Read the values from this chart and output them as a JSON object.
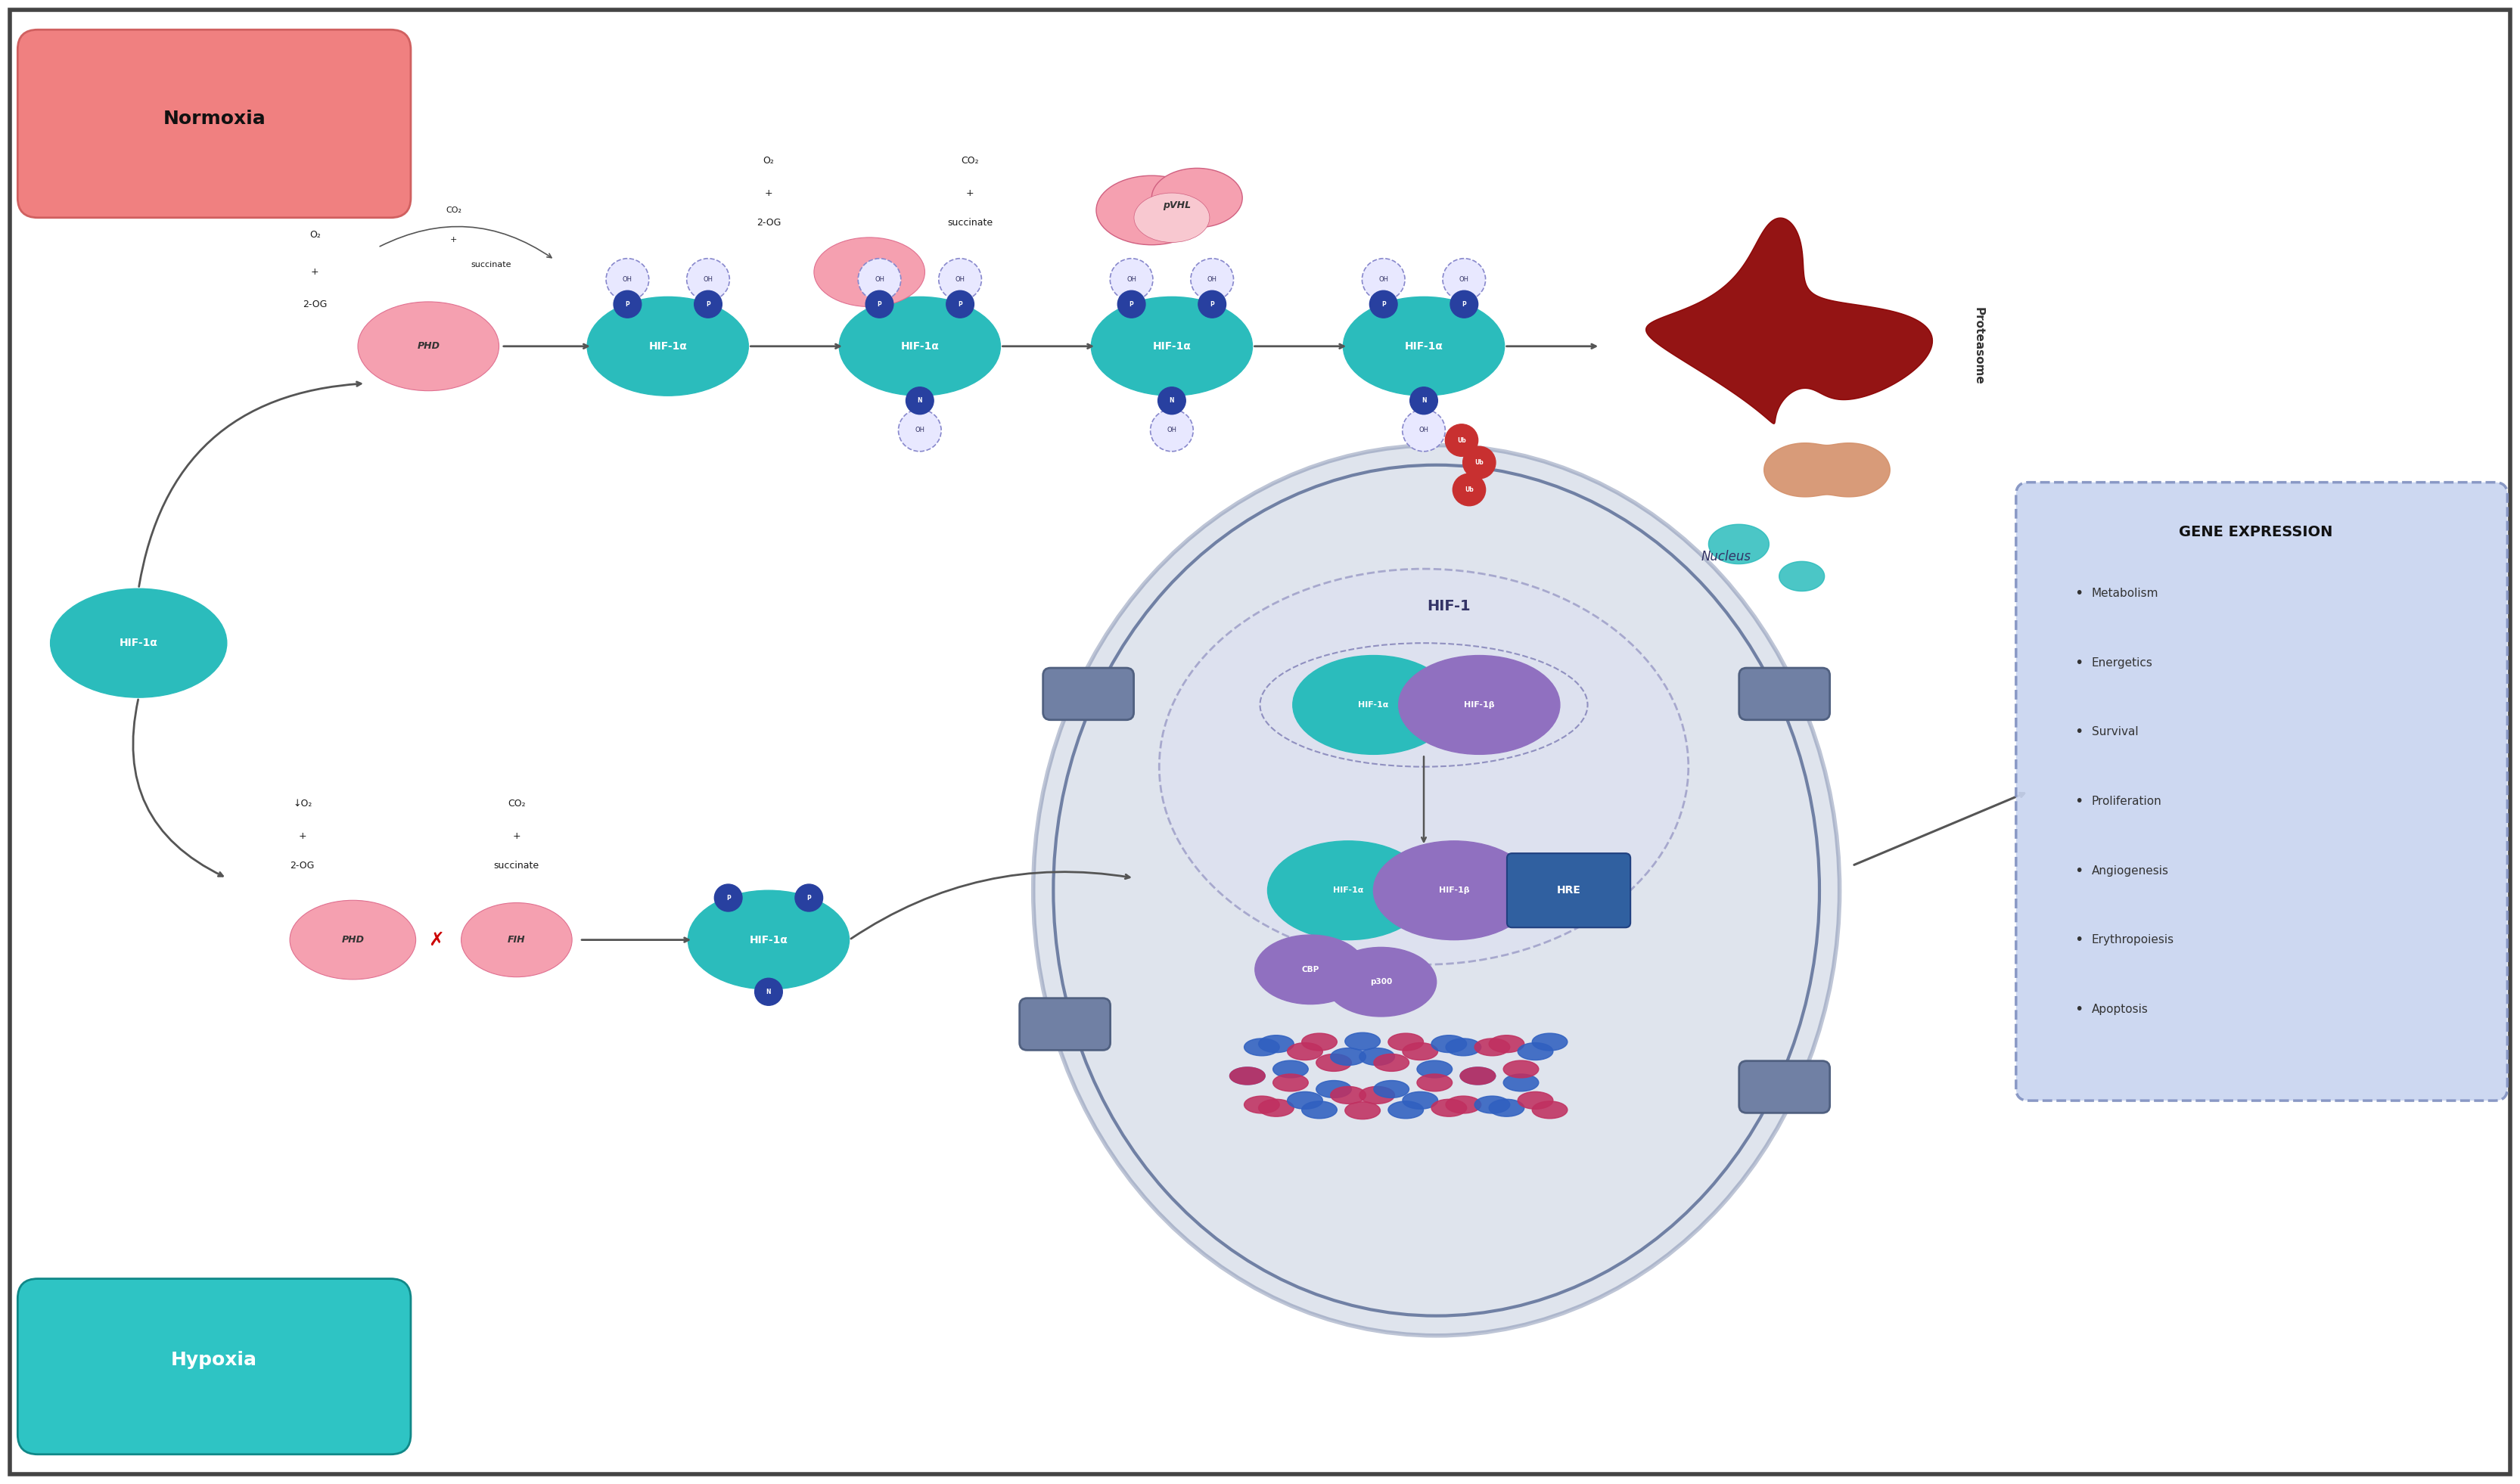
{
  "bg": "#ffffff",
  "border_color": "#444444",
  "normoxia_label": "Normoxia",
  "normoxia_color": "#f08080",
  "normoxia_border": "#d06060",
  "hypoxia_label": "Hypoxia",
  "hypoxia_color": "#2ec4c4",
  "hypoxia_border": "#108888",
  "hif_color": "#2bbcbc",
  "hif_text": "HIF-1α",
  "phd_color": "#f5a0b0",
  "oh_bg": "#e8e8ff",
  "oh_border": "#8888cc",
  "p_color": "#2840a0",
  "n_color": "#2840a0",
  "ub_color": "#c83030",
  "prot_dark": "#8b0000",
  "prot_grad1": "#c04030",
  "prot_tan": "#d4906a",
  "prot_teal": "#2bbcbc",
  "nucleus_fill": "#b8c4d8",
  "nucleus_border": "#7080a4",
  "nuc_inner_fill": "#dde0f0",
  "nuc_inner_border": "#9090c0",
  "hif1b_color": "#9070c0",
  "hre_color": "#3060a0",
  "cbp_color": "#9070c0",
  "dna_blue": "#3060c0",
  "dna_pink": "#c03060",
  "gene_fill": "#c8d4f0",
  "gene_border": "#8090c0",
  "gene_title": "GENE EXPRESSION",
  "gene_items": [
    "Metabolism",
    "Energetics",
    "Survival",
    "Proliferation",
    "Angiogenesis",
    "Erythropoiesis",
    "Apoptosis"
  ],
  "arrow_color": "#555555",
  "text_dark": "#1a1a1a",
  "nucleus_label": "Nucleus",
  "hif1_label": "HIF-1",
  "tab_color": "#7080a4",
  "tab_border": "#506080"
}
